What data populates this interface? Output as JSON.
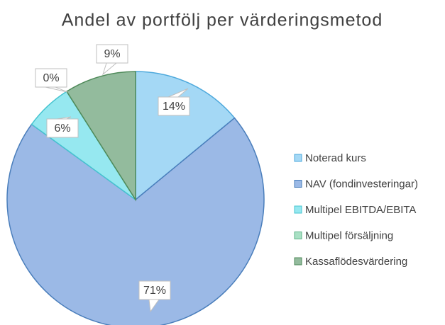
{
  "chart_data": {
    "type": "pie",
    "title": "Andel av portfölj per värderingsmetod",
    "categories": [
      "Noterad kurs",
      "NAV (fondinvesteringar)",
      "Multipel EBITDA/EBITA",
      "Multipel försäljning",
      "Kassaflödesvärdering"
    ],
    "values": [
      14,
      71,
      6,
      0,
      9
    ],
    "value_labels": [
      "14%",
      "71%",
      "6%",
      "0%",
      "9%"
    ],
    "colors": [
      "#a4d8f5",
      "#9bb9e6",
      "#96e8f0",
      "#a9e0c4",
      "#93bb9d"
    ],
    "legend": "right"
  }
}
